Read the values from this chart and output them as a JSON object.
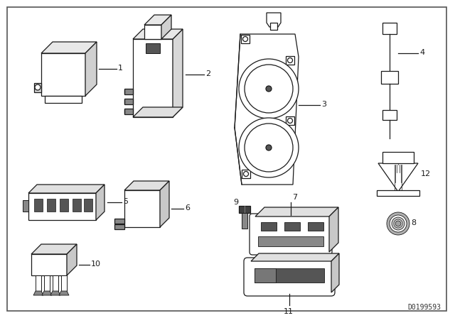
{
  "background_color": "#ffffff",
  "line_color": "#1a1a1a",
  "text_color": "#1a1a1a",
  "watermark": "D0199593",
  "fig_width": 6.4,
  "fig_height": 4.48,
  "dpi": 100
}
